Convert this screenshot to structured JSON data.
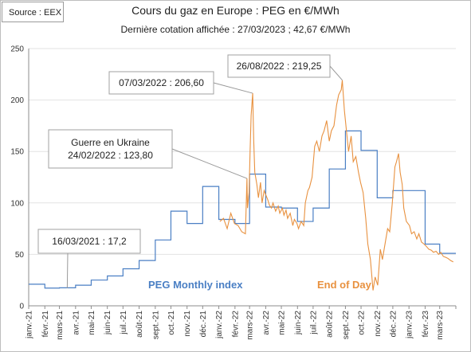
{
  "source": "Source : EEX",
  "title": "Cours du gaz en Europe : PEG en €/MWh",
  "subtitle": "Dernière cotation affichée : 27/03/2023 ; 42,67 €/MWh",
  "colors": {
    "monthly": "#4a7fc4",
    "eod": "#e8913f",
    "axis": "#8c8c8c",
    "grid": "#e2e2e2"
  },
  "chart_data": {
    "type": "line",
    "ylim": [
      0,
      250
    ],
    "yticks": [
      0,
      50,
      100,
      150,
      200,
      250
    ],
    "xlim": [
      "2021-01-01",
      "2023-04-01"
    ],
    "xtick_labels": [
      "janv.-21",
      "févr.-21",
      "mars-21",
      "avr.-21",
      "mai-21",
      "juin-21",
      "juil.-21",
      "août-21",
      "sept.-21",
      "oct.-21",
      "nov.-21",
      "déc.-21",
      "janv.-22",
      "févr.-22",
      "mars-22",
      "avr.-22",
      "mai-22",
      "juin-22",
      "juil.-22",
      "août-22",
      "sept.-22",
      "oct.-22",
      "nov.-22",
      "déc.-22",
      "janv.-23",
      "févr.-23",
      "mars-23"
    ],
    "series": [
      {
        "name": "PEG Monthly index",
        "step": true,
        "x": [
          "2021-01",
          "2021-02",
          "2021-03",
          "2021-04",
          "2021-05",
          "2021-06",
          "2021-07",
          "2021-08",
          "2021-09",
          "2021-10",
          "2021-11",
          "2021-12",
          "2022-01",
          "2022-02",
          "2022-03",
          "2022-04",
          "2022-05",
          "2022-06",
          "2022-07",
          "2022-08",
          "2022-09",
          "2022-10",
          "2022-11",
          "2022-12",
          "2023-01",
          "2023-02",
          "2023-03"
        ],
        "values": [
          21,
          17.2,
          17.5,
          20,
          25,
          29,
          36,
          44,
          64,
          92,
          80,
          116,
          84,
          80,
          128,
          96,
          95,
          82,
          95,
          133,
          170,
          151,
          105,
          112,
          112,
          60,
          51
        ]
      },
      {
        "name": "End of Day",
        "x": [
          "2022-01-03",
          "2022-01-10",
          "2022-01-17",
          "2022-01-24",
          "2022-01-31",
          "2022-02-07",
          "2022-02-14",
          "2022-02-21",
          "2022-02-24",
          "2022-02-25",
          "2022-02-28",
          "2022-03-02",
          "2022-03-04",
          "2022-03-07",
          "2022-03-09",
          "2022-03-11",
          "2022-03-15",
          "2022-03-18",
          "2022-03-22",
          "2022-03-25",
          "2022-03-29",
          "2022-04-01",
          "2022-04-05",
          "2022-04-08",
          "2022-04-12",
          "2022-04-15",
          "2022-04-20",
          "2022-04-25",
          "2022-04-28",
          "2022-05-03",
          "2022-05-06",
          "2022-05-10",
          "2022-05-13",
          "2022-05-18",
          "2022-05-23",
          "2022-05-26",
          "2022-05-31",
          "2022-06-03",
          "2022-06-08",
          "2022-06-13",
          "2022-06-16",
          "2022-06-21",
          "2022-06-24",
          "2022-06-29",
          "2022-07-04",
          "2022-07-08",
          "2022-07-13",
          "2022-07-18",
          "2022-07-22",
          "2022-07-27",
          "2022-08-01",
          "2022-08-05",
          "2022-08-10",
          "2022-08-15",
          "2022-08-19",
          "2022-08-24",
          "2022-08-26",
          "2022-08-30",
          "2022-09-02",
          "2022-09-07",
          "2022-09-12",
          "2022-09-16",
          "2022-09-21",
          "2022-09-26",
          "2022-09-30",
          "2022-10-05",
          "2022-10-10",
          "2022-10-14",
          "2022-10-19",
          "2022-10-24",
          "2022-10-28",
          "2022-11-02",
          "2022-11-07",
          "2022-11-11",
          "2022-11-16",
          "2022-11-21",
          "2022-11-25",
          "2022-11-30",
          "2022-12-05",
          "2022-12-08",
          "2022-12-12",
          "2022-12-15",
          "2022-12-19",
          "2022-12-22",
          "2022-12-27",
          "2023-01-02",
          "2023-01-06",
          "2023-01-11",
          "2023-01-16",
          "2023-01-20",
          "2023-01-25",
          "2023-01-30",
          "2023-02-03",
          "2023-02-08",
          "2023-02-13",
          "2023-02-17",
          "2023-02-22",
          "2023-02-27",
          "2023-03-03",
          "2023-03-08",
          "2023-03-13",
          "2023-03-17",
          "2023-03-22",
          "2023-03-27"
        ],
        "values": [
          82,
          85,
          75,
          90,
          80,
          78,
          72,
          70,
          123.8,
          95,
          110,
          150,
          185,
          206.6,
          160,
          130,
          118,
          105,
          120,
          100,
          112,
          108,
          103,
          98,
          95,
          100,
          92,
          97,
          90,
          95,
          88,
          93,
          85,
          90,
          78,
          84,
          80,
          75,
          82,
          78,
          100,
          112,
          115,
          125,
          155,
          160,
          150,
          165,
          170,
          180,
          160,
          170,
          175,
          195,
          205,
          210,
          219.25,
          190,
          175,
          150,
          165,
          140,
          145,
          130,
          120,
          110,
          85,
          60,
          45,
          15,
          28,
          20,
          55,
          45,
          60,
          75,
          72,
          100,
          135,
          140,
          148,
          130,
          118,
          95,
          82,
          78,
          70,
          72,
          65,
          70,
          62,
          60,
          58,
          55,
          54,
          52,
          53,
          50,
          52,
          48,
          47,
          46,
          44,
          42.67
        ]
      }
    ],
    "annotations": [
      {
        "lines": [
          "16/03/2021 : 17,2"
        ],
        "date": "2021-03-16",
        "value": 17.2
      },
      {
        "lines": [
          "Guerre en Ukraine",
          "24/02/2022 : 123,80"
        ],
        "date": "2022-02-24",
        "value": 123.8
      },
      {
        "lines": [
          "07/03/2022 : 206,60"
        ],
        "date": "2022-03-07",
        "value": 206.6
      },
      {
        "lines": [
          "26/08/2022 : 219,25"
        ],
        "date": "2022-08-26",
        "value": 219.25
      }
    ],
    "series_labels": {
      "monthly": "PEG Monthly index",
      "eod": "End of Day"
    }
  }
}
